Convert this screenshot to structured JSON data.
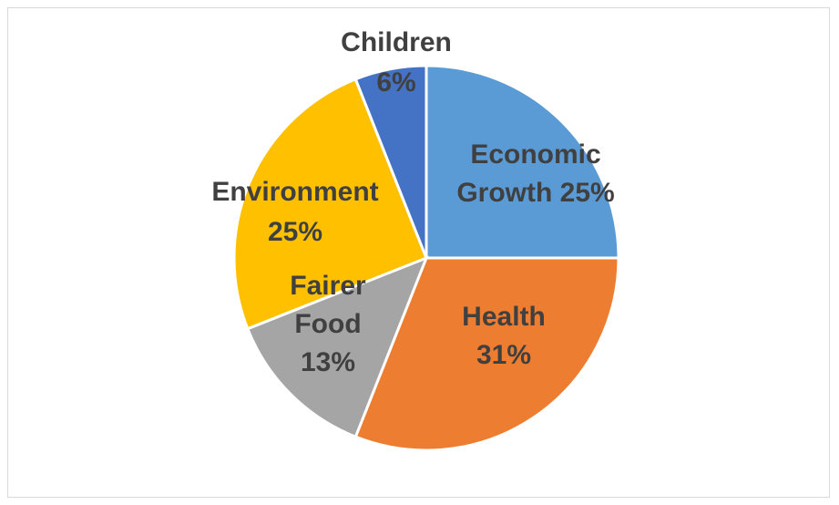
{
  "chart_data": {
    "type": "pie",
    "title": "",
    "slices": [
      {
        "name": "Economic Growth",
        "value": 25,
        "color": "#5B9BD5",
        "label_lines": [
          "Economic",
          "Growth 25%"
        ]
      },
      {
        "name": "Health",
        "value": 31,
        "color": "#ED7D31",
        "label_lines": [
          "Health",
          "31%"
        ]
      },
      {
        "name": "Fairer Food",
        "value": 13,
        "color": "#A5A5A5",
        "label_lines": [
          "Fairer",
          "Food",
          "13%"
        ]
      },
      {
        "name": "Environment",
        "value": 25,
        "color": "#FFC000",
        "label_lines": [
          "Environment",
          "25%"
        ]
      },
      {
        "name": "Children",
        "value": 6,
        "color": "#4472C4",
        "label_lines": [
          "Children",
          "6%"
        ]
      }
    ],
    "start_angle": "12 o'clock",
    "direction": "clockwise",
    "legend": "none",
    "label_color": "#404040"
  }
}
